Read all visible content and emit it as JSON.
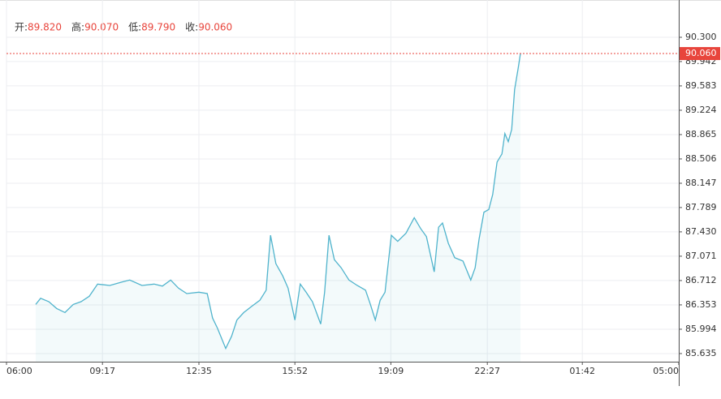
{
  "chart_data": {
    "type": "line",
    "info": [
      {
        "label": "开:",
        "value": "89.820"
      },
      {
        "label": "高:",
        "value": "90.070"
      },
      {
        "label": "低:",
        "value": "89.790"
      },
      {
        "label": "收:",
        "value": "90.060"
      }
    ],
    "series": [
      {
        "color": "#4fb3cc",
        "x": [
          60,
          70,
          87,
          103,
          120,
          137,
          153,
          170,
          187,
          212,
          237,
          253,
          278,
          303,
          320,
          337,
          353,
          370,
          395,
          412,
          423,
          433,
          450,
          462,
          473,
          487,
          503,
          520,
          533,
          542,
          553,
          567,
          578,
          592,
          603,
          615,
          628,
          645,
          653,
          662,
          673,
          687,
          703,
          720,
          737,
          747,
          757,
          767,
          777,
          790,
          803,
          820,
          837,
          850,
          862,
          878,
          887,
          895,
          907,
          920,
          937,
          953,
          962,
          970,
          980,
          990,
          998,
          1007,
          1017,
          1023,
          1030,
          1037,
          1043,
          1050,
          1055
        ],
        "values": [
          86.36,
          86.45,
          86.4,
          86.3,
          86.24,
          86.36,
          86.4,
          86.48,
          86.66,
          86.64,
          86.69,
          86.72,
          86.64,
          86.66,
          86.63,
          86.72,
          86.6,
          86.52,
          86.54,
          86.52,
          86.16,
          86.01,
          85.71,
          85.89,
          86.13,
          86.24,
          86.33,
          86.42,
          86.57,
          87.38,
          86.96,
          86.78,
          86.6,
          86.13,
          86.66,
          86.54,
          86.4,
          86.07,
          86.54,
          87.38,
          87.02,
          86.9,
          86.72,
          86.64,
          86.57,
          86.36,
          86.13,
          86.42,
          86.54,
          87.38,
          87.29,
          87.41,
          87.64,
          87.48,
          87.36,
          86.84,
          87.5,
          87.56,
          87.26,
          87.05,
          87.0,
          86.72,
          86.9,
          87.32,
          87.72,
          87.76,
          87.98,
          88.46,
          88.58,
          88.88,
          88.76,
          88.94,
          89.53,
          89.83,
          90.06
        ]
      }
    ],
    "last_price": {
      "value": 90.06,
      "label": "90.060",
      "color": "#e8453c"
    },
    "xlim": [
      0,
      1380
    ],
    "xticks": [
      {
        "value": 0,
        "label": "06:00"
      },
      {
        "value": 197,
        "label": "09:17"
      },
      {
        "value": 395,
        "label": "12:35"
      },
      {
        "value": 592,
        "label": "15:52"
      },
      {
        "value": 789,
        "label": "19:09"
      },
      {
        "value": 987,
        "label": "22:27"
      },
      {
        "value": 1182,
        "label": "01:42"
      },
      {
        "value": 1380,
        "label": "05:00"
      }
    ],
    "ylim": [
      85.515,
      90.85
    ],
    "yticks": [
      85.635,
      85.994,
      86.353,
      86.712,
      87.071,
      {
        "value": 87.43,
        "label": "87.430"
      },
      87.789,
      88.147,
      88.506,
      88.865,
      89.224,
      89.583,
      89.942,
      {
        "value": 90.3,
        "label": "90.300"
      }
    ],
    "grid": true
  }
}
